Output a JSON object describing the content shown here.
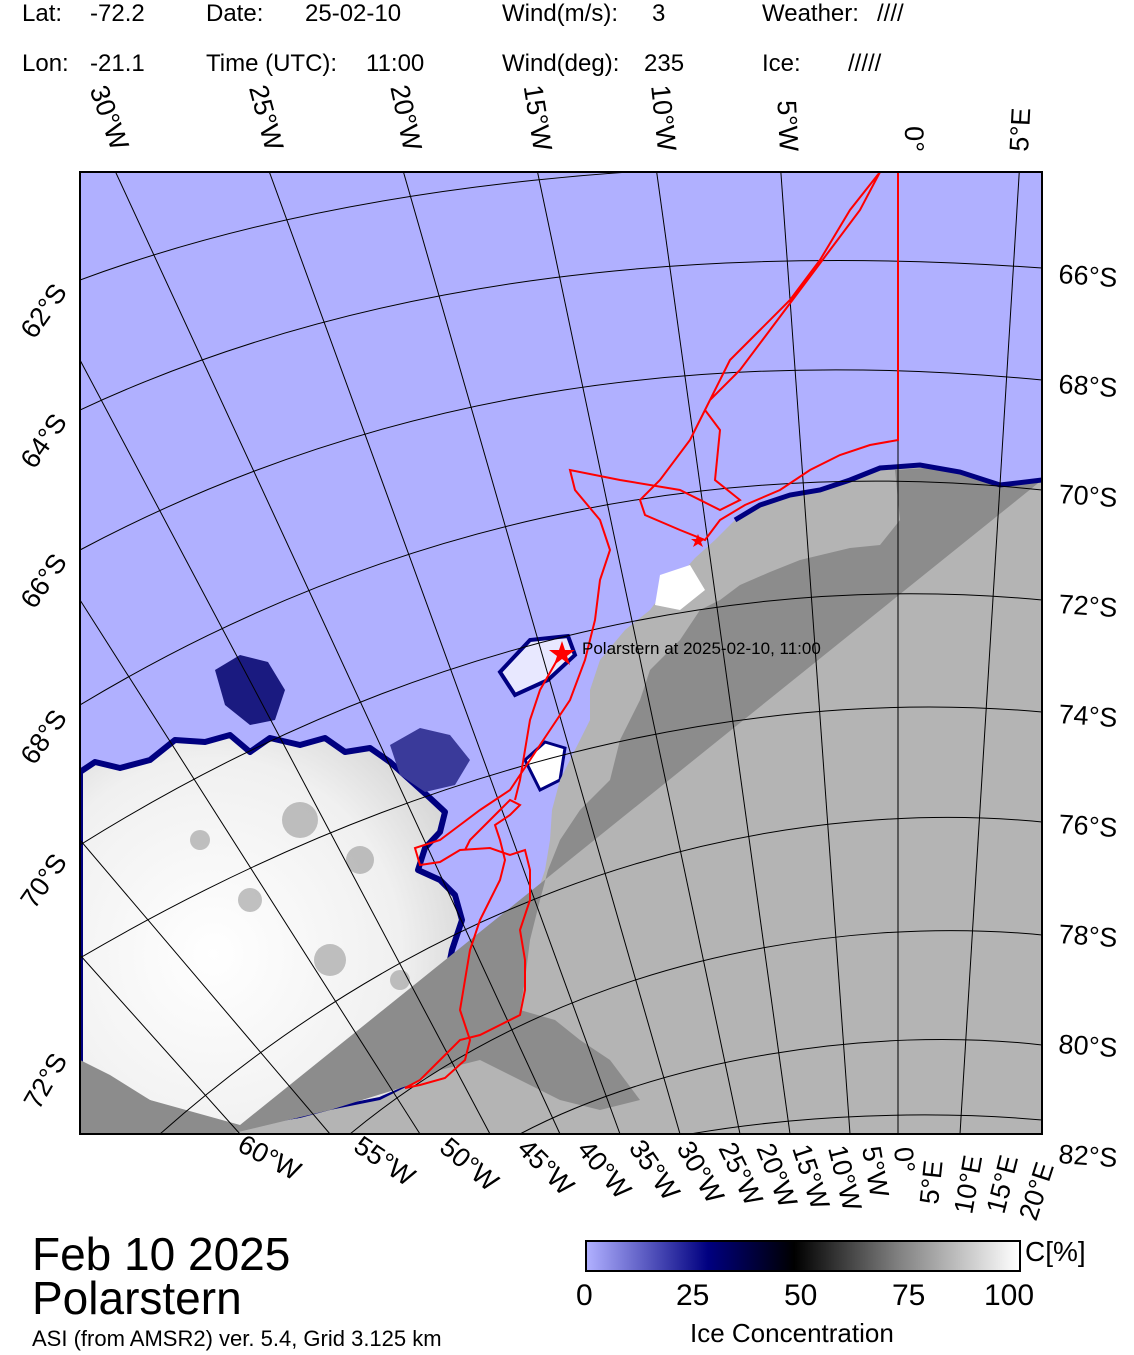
{
  "header": {
    "lat_label": "Lat:",
    "lat_value": "-72.2",
    "lon_label": "Lon:",
    "lon_value": "-21.1",
    "date_label": "Date:",
    "date_value": "25-02-10",
    "time_label": "Time (UTC):",
    "time_value": "11:00",
    "wind_speed_label": "Wind(m/s):",
    "wind_speed_value": "3",
    "wind_dir_label": "Wind(deg):",
    "wind_dir_value": "235",
    "weather_label": "Weather:",
    "weather_value": "////",
    "ice_label": "Ice:",
    "ice_value": "/////"
  },
  "map": {
    "top_lon_labels": [
      "30°W",
      "25°W",
      "20°W",
      "15°W",
      "10°W",
      "5°W",
      "0°",
      "5°E"
    ],
    "left_lat_labels": [
      "62°S",
      "64°S",
      "66°S",
      "68°S",
      "70°S",
      "72°S"
    ],
    "right_lat_labels": [
      "66°S",
      "68°S",
      "70°S",
      "72°S",
      "74°S",
      "76°S",
      "78°S",
      "80°S",
      "82°S"
    ],
    "bottom_lon_labels": [
      "60°W",
      "55°W",
      "50°W",
      "45°W",
      "40°W",
      "35°W",
      "30°W",
      "25°W",
      "20°W",
      "15°W",
      "10°W",
      "5°W",
      "0°",
      "5°E",
      "10°E",
      "15°E",
      "20°E"
    ],
    "ship_label": "Polarstern at 2025-02-10, 11:00",
    "colors": {
      "ocean": "#b0b0ff",
      "land": "#b4b4b4",
      "shelf": "#8c8c8c",
      "track": "#ff0000",
      "ice_edge": "#000080"
    }
  },
  "footer": {
    "date_title": "Feb 10 2025",
    "ship_name": "Polarstern",
    "source": "ASI (from AMSR2) ver. 5.4,  Grid 3.125 km"
  },
  "colorbar": {
    "unit": "C[%]",
    "ticks": [
      "0",
      "25",
      "50",
      "75",
      "100"
    ],
    "title": "Ice Concentration",
    "gradient": [
      "#b0b0ff",
      "#000080",
      "#000000",
      "#808080",
      "#ffffff"
    ]
  }
}
